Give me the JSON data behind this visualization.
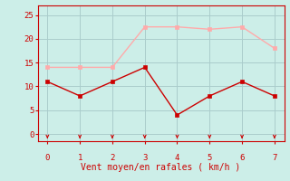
{
  "x": [
    0,
    1,
    2,
    3,
    4,
    5,
    6,
    7
  ],
  "vent_moyen": [
    11,
    8,
    11,
    14,
    4,
    8,
    11,
    8
  ],
  "rafales": [
    14,
    14,
    14,
    22.5,
    22.5,
    22,
    22.5,
    18
  ],
  "xlabel": "Vent moyen/en rafales ( km/h )",
  "xlim": [
    -0.3,
    7.3
  ],
  "ylim": [
    -1.5,
    27
  ],
  "yticks": [
    0,
    5,
    10,
    15,
    20,
    25
  ],
  "xticks": [
    0,
    1,
    2,
    3,
    4,
    5,
    6,
    7
  ],
  "color_moyen": "#cc0000",
  "color_rafales": "#ffaaaa",
  "background_color": "#cceee8",
  "grid_color": "#aacccc",
  "line_width": 1.0,
  "marker_size": 3
}
